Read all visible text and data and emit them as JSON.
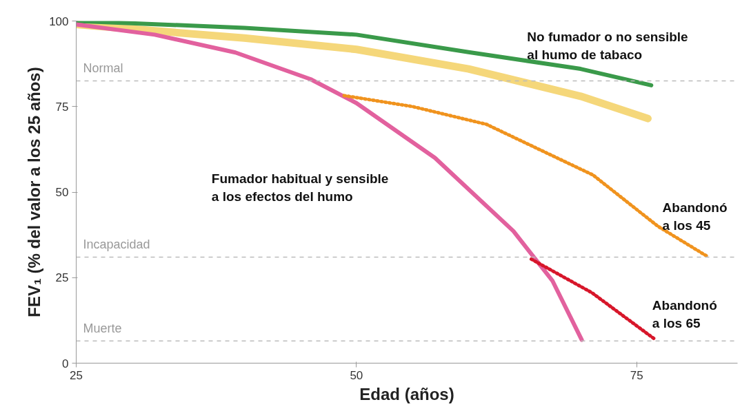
{
  "chart_data": {
    "type": "line",
    "xlabel": "Edad (años)",
    "ylabel": "FEV₁ (% del valor a los 25 años)",
    "xlim": [
      25,
      84
    ],
    "ylim": [
      0,
      100
    ],
    "xticks": [
      25,
      50,
      75
    ],
    "yticks": [
      0,
      25,
      50,
      75,
      100
    ],
    "grid": false,
    "legend": false,
    "series": [
      {
        "name": "No fumador o no sensible al humo de tabaco",
        "color": "#3a9a4a",
        "line_style": "solid",
        "x": [
          25,
          40,
          50,
          60,
          70,
          76.3
        ],
        "values": [
          100,
          98,
          96,
          90.9,
          86,
          81.2
        ]
      },
      {
        "color": "#f5d77a",
        "line_style": "solid",
        "x": [
          25,
          40,
          50,
          60,
          70,
          76
        ],
        "values": [
          99,
          95,
          91.7,
          86,
          78,
          71.5
        ]
      },
      {
        "name": "Fumador habitual y sensible a los efectos del humo",
        "color": "#e2619e",
        "line_style": "solid",
        "x": [
          25,
          32,
          39.2,
          45.9,
          50,
          57,
          64,
          67.5,
          70.1
        ],
        "values": [
          99,
          96,
          90.8,
          83,
          76,
          60,
          38.6,
          24,
          6.8
        ]
      },
      {
        "name": "Abandonó a los 45",
        "color": "#f0931e",
        "line_style": "dotted",
        "x": [
          48.9,
          55,
          61.6,
          71.1,
          76.9,
          81.3
        ],
        "values": [
          78.2,
          75,
          69.8,
          55,
          40,
          31.2
        ]
      },
      {
        "name": "Abandonó a los 65",
        "color": "#d7162a",
        "line_style": "dotted",
        "x": [
          65.6,
          71,
          76.7
        ],
        "values": [
          30.4,
          20.6,
          6.8
        ]
      }
    ],
    "ref_lines": [
      {
        "axis": "y",
        "value": 82.5,
        "label": "Normal",
        "color": "#bbbbbb",
        "line_style": "dashed"
      },
      {
        "axis": "y",
        "value": 31,
        "label": "Incapacidad",
        "color": "#bbbbbb",
        "line_style": "dashed"
      },
      {
        "axis": "y",
        "value": 6.5,
        "label": "Muerte",
        "color": "#bbbbbb",
        "line_style": "dashed"
      }
    ]
  }
}
